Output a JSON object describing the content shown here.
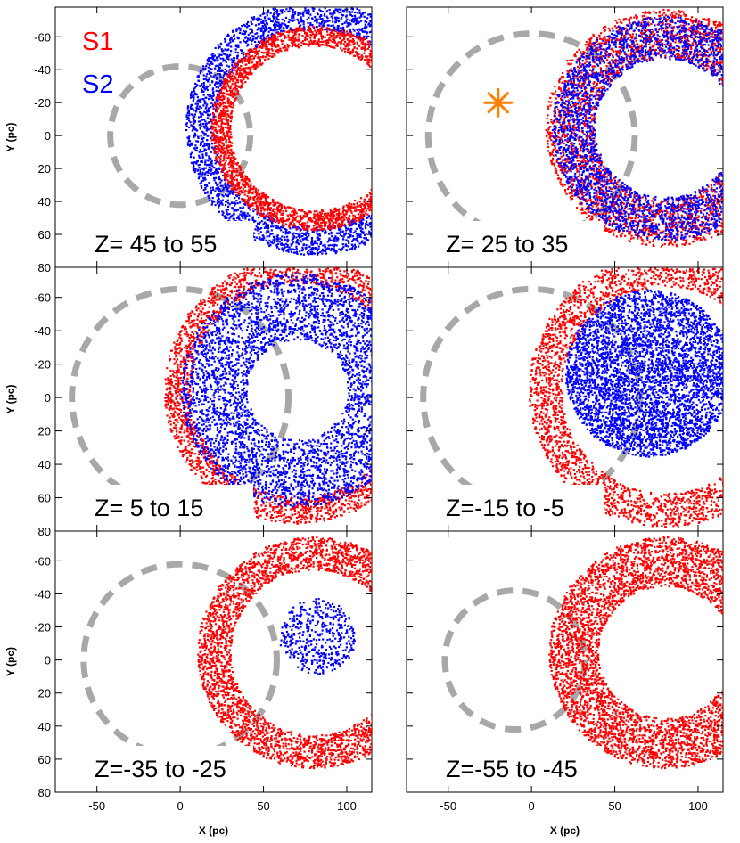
{
  "figure": {
    "xlabel": "X (pc)",
    "ylabel": "Y (pc)",
    "xlim": [
      -75,
      115
    ],
    "ylim": [
      -78,
      80
    ],
    "xticks": [
      -50,
      0,
      50,
      100
    ],
    "yticks": [
      -60,
      -40,
      -20,
      0,
      20,
      40,
      60,
      80
    ],
    "legend": [
      {
        "label": "S1",
        "color": "#ff0000"
      },
      {
        "label": "S2",
        "color": "#0000ff"
      }
    ],
    "dashed_circle_color": "#a8a8a8",
    "marker_color": "#ff8000"
  },
  "chart_data": [
    {
      "type": "scatter",
      "panel": "top-left",
      "title": "Z= 45 to 55",
      "dashed_circle": {
        "cx": 0,
        "cy": 0,
        "r": 42
      },
      "series": [
        {
          "name": "S2",
          "color": "#0000ff",
          "shape": "ring",
          "cx": 80,
          "cy": -5,
          "r_inner": 60,
          "r_outer": 77,
          "points": 3200
        },
        {
          "name": "S1",
          "color": "#ff0000",
          "shape": "ring",
          "cx": 80,
          "cy": -5,
          "r_inner": 50,
          "r_outer": 62,
          "points": 2800
        }
      ]
    },
    {
      "type": "scatter",
      "panel": "top-right",
      "title": "Z= 25 to 35",
      "dashed_circle": {
        "cx": 0,
        "cy": 0,
        "r": 62
      },
      "marker": {
        "x": -20,
        "y": -20,
        "symbol": "asterisk"
      },
      "series": [
        {
          "name": "S1",
          "color": "#ff0000",
          "shape": "ring",
          "cx": 80,
          "cy": -5,
          "r_inner": 43,
          "r_outer": 72,
          "points": 3400
        },
        {
          "name": "S2",
          "color": "#0000ff",
          "shape": "ring",
          "cx": 80,
          "cy": -5,
          "r_inner": 42,
          "r_outer": 68,
          "points": 3400
        }
      ]
    },
    {
      "type": "scatter",
      "panel": "middle-left",
      "title": "Z= 5 to 15",
      "dashed_circle": {
        "cx": 0,
        "cy": 0,
        "r": 65
      },
      "series": [
        {
          "name": "S1",
          "color": "#ff0000",
          "shape": "ring",
          "cx": 70,
          "cy": -5,
          "r_inner": 64,
          "r_outer": 80,
          "points": 2800
        },
        {
          "name": "S2",
          "color": "#0000ff",
          "shape": "ring",
          "cx": 70,
          "cy": -5,
          "r_inner": 30,
          "r_outer": 70,
          "points": 4200
        }
      ]
    },
    {
      "type": "scatter",
      "panel": "middle-right",
      "title": "Z=-15 to -5",
      "dashed_circle": {
        "cx": 0,
        "cy": 0,
        "r": 65
      },
      "series": [
        {
          "name": "S1",
          "color": "#ff0000",
          "shape": "ring",
          "cx": 80,
          "cy": -5,
          "r_inner": 62,
          "r_outer": 82,
          "points": 3200
        },
        {
          "name": "S2",
          "color": "#0000ff",
          "shape": "ring",
          "cx": 70,
          "cy": -15,
          "r_inner": 0,
          "r_outer": 50,
          "points": 4200
        }
      ]
    },
    {
      "type": "scatter",
      "panel": "bottom-left",
      "title": "Z=-35 to -25",
      "dashed_circle": {
        "cx": 0,
        "cy": 0,
        "r": 58
      },
      "series": [
        {
          "name": "S1",
          "color": "#ff0000",
          "shape": "ring",
          "cx": 80,
          "cy": -5,
          "r_inner": 50,
          "r_outer": 70,
          "points": 3600
        },
        {
          "name": "S2",
          "color": "#0000ff",
          "shape": "ring",
          "cx": 82,
          "cy": -15,
          "r_inner": 0,
          "r_outer": 23,
          "points": 450
        }
      ]
    },
    {
      "type": "scatter",
      "panel": "bottom-right",
      "title": "Z=-55 to -45",
      "dashed_circle": {
        "cx": -10,
        "cy": 0,
        "r": 42
      },
      "series": [
        {
          "name": "S1",
          "color": "#ff0000",
          "shape": "ring",
          "cx": 80,
          "cy": -5,
          "r_inner": 40,
          "r_outer": 70,
          "points": 4800
        }
      ]
    }
  ]
}
